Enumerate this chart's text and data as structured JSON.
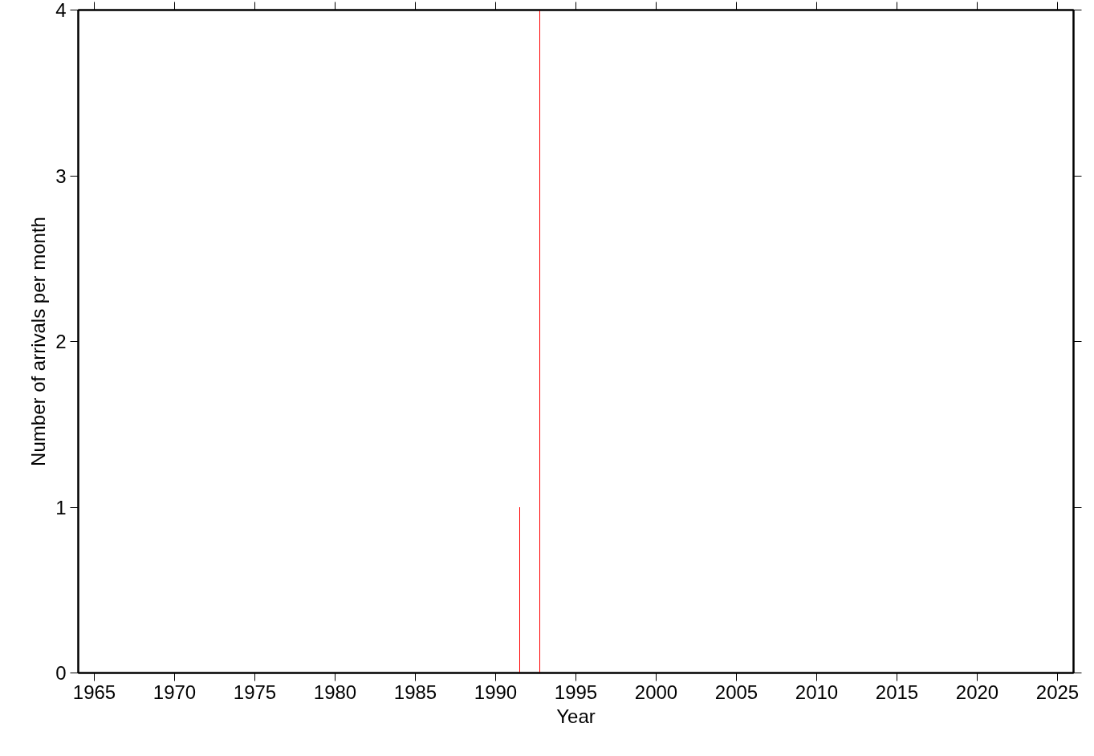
{
  "chart_data": {
    "type": "bar",
    "xlabel": "Year",
    "ylabel": "Number of arrivals per month",
    "x": [
      1991.5,
      1992.75
    ],
    "values": [
      1,
      4
    ],
    "color": "#ff0000",
    "xlim": [
      1964,
      2026
    ],
    "xticks": [
      1965,
      1970,
      1975,
      1980,
      1985,
      1990,
      1995,
      2000,
      2005,
      2010,
      2015,
      2020,
      2025
    ],
    "ylim": [
      0,
      4
    ],
    "yticks": [
      0,
      1,
      2,
      3,
      4
    ],
    "grid": false
  }
}
